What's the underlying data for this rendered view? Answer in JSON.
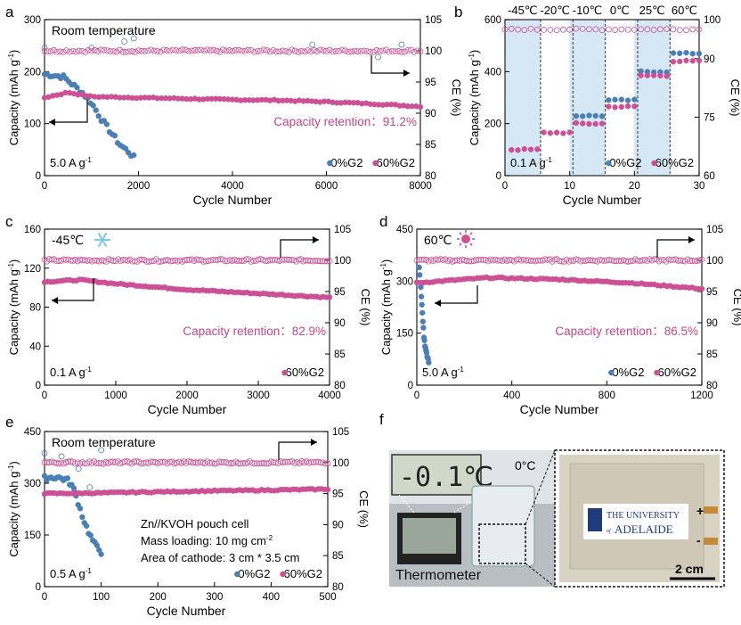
{
  "colors": {
    "blue": "#4a7fb5",
    "pink": "#cc5096",
    "pinkText": "#c0458a",
    "frame": "#222222",
    "shade": "#d6e8f5"
  },
  "panels": [
    {
      "letter": "a",
      "title": "Room temperature",
      "xlabel": "Cycle Number",
      "ylabel": "Capacity (mAh g",
      "yrlabel": "CE (%)",
      "xlim": [
        0,
        8000
      ],
      "ylim": [
        0,
        300
      ],
      "yrlim": [
        80,
        105
      ],
      "xticks": [
        "0",
        "2000",
        "4000",
        "6000",
        "8000"
      ],
      "yticks": [
        "0",
        "100",
        "200",
        "300"
      ],
      "yrticks": [
        "80",
        "85",
        "90",
        "95",
        "100",
        "105"
      ],
      "retention": "Capacity retention：91.2%",
      "rate": "5.0 A g",
      "legend": [
        "0%G2",
        "60%G2"
      ]
    },
    {
      "letter": "b",
      "xlabel": "Cycle Number",
      "ylabel": "Capacity (mAh g",
      "yrlabel": "CE (%)",
      "xlim": [
        0,
        30
      ],
      "ylim": [
        0,
        600
      ],
      "yrlim": [
        60,
        100
      ],
      "xticks": [
        "0",
        "10",
        "20",
        "30"
      ],
      "yticks": [
        "0",
        "200",
        "400",
        "600"
      ],
      "yrticks": [
        "60",
        "75",
        "90",
        "100"
      ],
      "temps": [
        "-45℃",
        "-20℃",
        "-10℃",
        "0℃",
        "25℃",
        "60℃"
      ],
      "rate": "0.1 A g",
      "legend": [
        "0%G2",
        "60%G2"
      ]
    },
    {
      "letter": "c",
      "title": "-45℃",
      "xlabel": "Cycle Number",
      "ylabel": "Capacity (mAh g",
      "yrlabel": "CE (%)",
      "xlim": [
        0,
        4000
      ],
      "ylim": [
        0,
        160
      ],
      "yrlim": [
        80,
        105
      ],
      "xticks": [
        "0",
        "1000",
        "2000",
        "3000",
        "4000"
      ],
      "yticks": [
        "0",
        "40",
        "80",
        "120",
        "160"
      ],
      "yrticks": [
        "80",
        "85",
        "90",
        "95",
        "100",
        "105"
      ],
      "retention": "Capacity retention：82.9%",
      "rate": "0.1 A g",
      "legend": [
        "60%G2"
      ]
    },
    {
      "letter": "d",
      "title": "60℃",
      "xlabel": "Cycle Number",
      "ylabel": "Capacity (mAh g",
      "yrlabel": "CE (%)",
      "xlim": [
        0,
        1200
      ],
      "ylim": [
        0,
        450
      ],
      "yrlim": [
        80,
        105
      ],
      "xticks": [
        "0",
        "400",
        "800",
        "1200"
      ],
      "yticks": [
        "0",
        "150",
        "300",
        "450"
      ],
      "yrticks": [
        "80",
        "85",
        "90",
        "95",
        "100",
        "105"
      ],
      "retention": "Capacity retention：86.5%",
      "rate": "5.0 A g",
      "legend": [
        "0%G2",
        "60%G2"
      ]
    },
    {
      "letter": "e",
      "title": "Room temperature",
      "xlabel": "Cycle Number",
      "ylabel": "Capacity (mAh g",
      "yrlabel": "CE (%)",
      "xlim": [
        0,
        500
      ],
      "ylim": [
        0,
        450
      ],
      "yrlim": [
        80,
        105
      ],
      "xticks": [
        "0",
        "100",
        "200",
        "300",
        "400",
        "500"
      ],
      "yticks": [
        "0",
        "150",
        "300",
        "450"
      ],
      "yrticks": [
        "80",
        "85",
        "90",
        "95",
        "100",
        "105"
      ],
      "notes": [
        "Zn//KVOH pouch cell",
        "Mass loading: 10 mg cm",
        "Area of cathode: 3 cm * 3.5 cm"
      ],
      "rate": "0.5 A g",
      "legend": [
        "0%G2",
        "60%G2"
      ]
    }
  ],
  "photo": {
    "letter": "f",
    "temp": "0°C",
    "display": "-0.1℃",
    "label": "Thermometer",
    "uni1": "THE UNIVERSITY",
    "uni2": "ADELAIDE",
    "uni_of": "of",
    "scale": "2 cm",
    "plus": "+",
    "minus": "-"
  },
  "chart_data": [
    {
      "panel": "a",
      "type": "scatter",
      "x_unit": "cycles",
      "series": [
        {
          "name": "0%G2 capacity",
          "x": [
            0,
            200,
            400,
            600,
            800,
            1000,
            1200,
            1400,
            1600,
            1800,
            1900
          ],
          "y": [
            195,
            193,
            190,
            175,
            160,
            140,
            110,
            85,
            60,
            45,
            35
          ]
        },
        {
          "name": "60%G2 capacity",
          "x": [
            0,
            500,
            1000,
            2000,
            3000,
            4000,
            5000,
            6000,
            7000,
            8000
          ],
          "y": [
            150,
            160,
            152,
            150,
            148,
            146,
            145,
            142,
            138,
            133
          ]
        },
        {
          "name": "0%G2 CE",
          "x": [
            0,
            1000,
            1700,
            1900,
            5700,
            7100,
            7600
          ],
          "y": [
            100.5,
            100.5,
            101.5,
            102,
            101,
            99,
            101
          ]
        },
        {
          "name": "60%G2 CE",
          "x": [
            0,
            8000
          ],
          "y": [
            100,
            100
          ]
        }
      ]
    },
    {
      "panel": "b",
      "type": "scatter",
      "series": [
        {
          "name": "0%G2 capacity",
          "values": [
            {
              "x_range": [
                11,
                15
              ],
              "y": 230
            },
            {
              "x_range": [
                16,
                20
              ],
              "y": 290
            },
            {
              "x_range": [
                21,
                25
              ],
              "y": 400
            },
            {
              "x_range": [
                26,
                30
              ],
              "y": 470
            }
          ]
        },
        {
          "name": "60%G2 capacity",
          "values": [
            {
              "x_range": [
                1,
                5
              ],
              "y": 100
            },
            {
              "x_range": [
                6,
                10
              ],
              "y": 165
            },
            {
              "x_range": [
                11,
                15
              ],
              "y": 200
            },
            {
              "x_range": [
                16,
                20
              ],
              "y": 265
            },
            {
              "x_range": [
                21,
                25
              ],
              "y": 385
            },
            {
              "x_range": [
                26,
                30
              ],
              "y": 440
            }
          ]
        },
        {
          "name": "60%G2 CE",
          "x": [
            0,
            30
          ],
          "y": [
            97.5,
            97.5
          ]
        }
      ]
    },
    {
      "panel": "c",
      "type": "scatter",
      "series": [
        {
          "name": "60%G2 capacity",
          "x": [
            0,
            500,
            1000,
            2000,
            3000,
            4000
          ],
          "y": [
            106,
            108,
            104,
            98,
            94,
            90
          ]
        },
        {
          "name": "60%G2 CE",
          "x": [
            0,
            4000
          ],
          "y": [
            100,
            100
          ]
        }
      ]
    },
    {
      "panel": "d",
      "type": "scatter",
      "series": [
        {
          "name": "0%G2 capacity",
          "x": [
            10,
            20,
            30,
            40,
            50
          ],
          "y": [
            340,
            250,
            140,
            90,
            70
          ]
        },
        {
          "name": "60%G2 capacity",
          "x": [
            0,
            300,
            600,
            900,
            1200
          ],
          "y": [
            295,
            310,
            305,
            295,
            278
          ]
        },
        {
          "name": "60%G2 CE",
          "x": [
            0,
            1200
          ],
          "y": [
            100,
            100
          ]
        }
      ]
    },
    {
      "panel": "e",
      "type": "scatter",
      "series": [
        {
          "name": "0%G2 capacity",
          "x": [
            0,
            20,
            40,
            50,
            60,
            70,
            80,
            90,
            100
          ],
          "y": [
            315,
            318,
            310,
            290,
            240,
            190,
            150,
            120,
            100
          ]
        },
        {
          "name": "60%G2 capacity",
          "x": [
            0,
            100,
            200,
            300,
            400,
            500
          ],
          "y": [
            270,
            272,
            275,
            278,
            280,
            283
          ]
        },
        {
          "name": "0%G2 CE",
          "x": [
            0,
            30,
            60,
            80,
            100
          ],
          "y": [
            101.5,
            101,
            99,
            96,
            102
          ]
        },
        {
          "name": "60%G2 CE",
          "x": [
            0,
            500
          ],
          "y": [
            100,
            100
          ]
        }
      ]
    }
  ]
}
